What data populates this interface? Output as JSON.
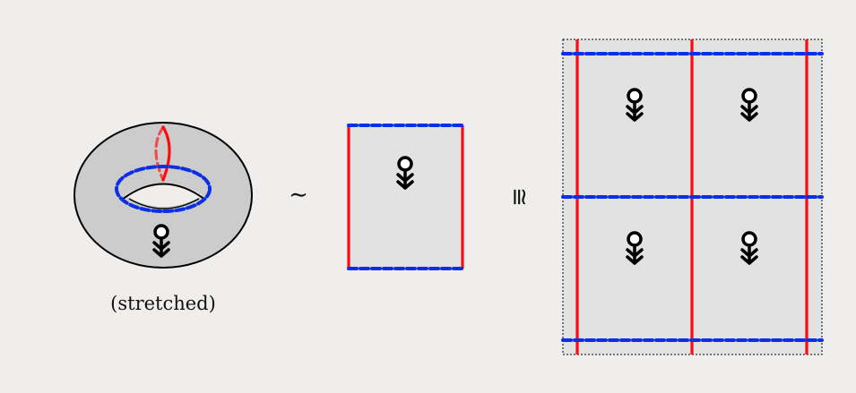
{
  "torus": {
    "caption": "(stretched)"
  },
  "relations": {
    "homotopy_symbol": "∼",
    "congruence_symbol": "≅"
  },
  "colors": {
    "background": "#efeeed",
    "surface_fill": "#cccccc",
    "square_fill": "#e2e2e2",
    "red_loop": "#ff0a12",
    "blue_loop": "#0a2fe6",
    "outline": "#000000"
  },
  "grid": {
    "rows": 2,
    "cols": 2
  },
  "figures": {
    "torus_figure_count": 1,
    "square_figure_count": 1,
    "grid_figure_count": 4
  }
}
